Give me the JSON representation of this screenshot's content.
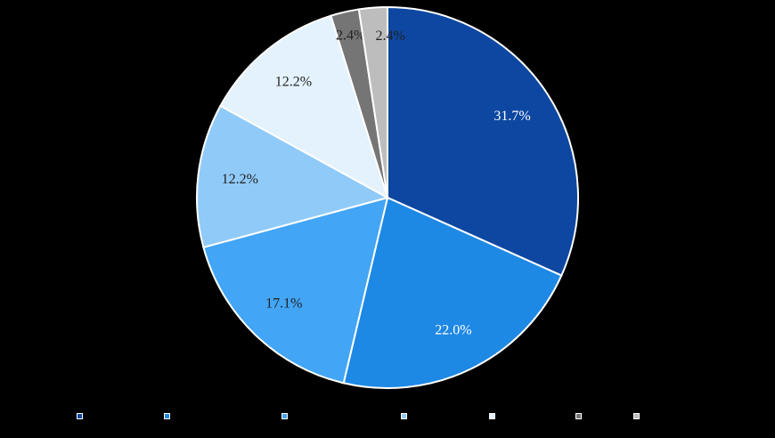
{
  "chart_data": {
    "type": "pie",
    "title": "",
    "slices": [
      {
        "label": "",
        "value": 31.7,
        "value_label": "31.7%",
        "color": "#0d47a1"
      },
      {
        "label": "",
        "value": 22.0,
        "value_label": "22.0%",
        "color": "#1e88e5"
      },
      {
        "label": "",
        "value": 17.1,
        "value_label": "17.1%",
        "color": "#42a5f5"
      },
      {
        "label": "",
        "value": 12.2,
        "value_label": "12.2%",
        "color": "#90caf9"
      },
      {
        "label": "",
        "value": 12.2,
        "value_label": "12.2%",
        "color": "#e3f2fd"
      },
      {
        "label": "",
        "value": 2.4,
        "value_label": "2.4%",
        "color": "#757575"
      },
      {
        "label": "",
        "value": 2.4,
        "value_label": "2.4%",
        "color": "#bdbdbd"
      }
    ],
    "legend": {
      "position": "bottom"
    },
    "background": "#000000"
  }
}
